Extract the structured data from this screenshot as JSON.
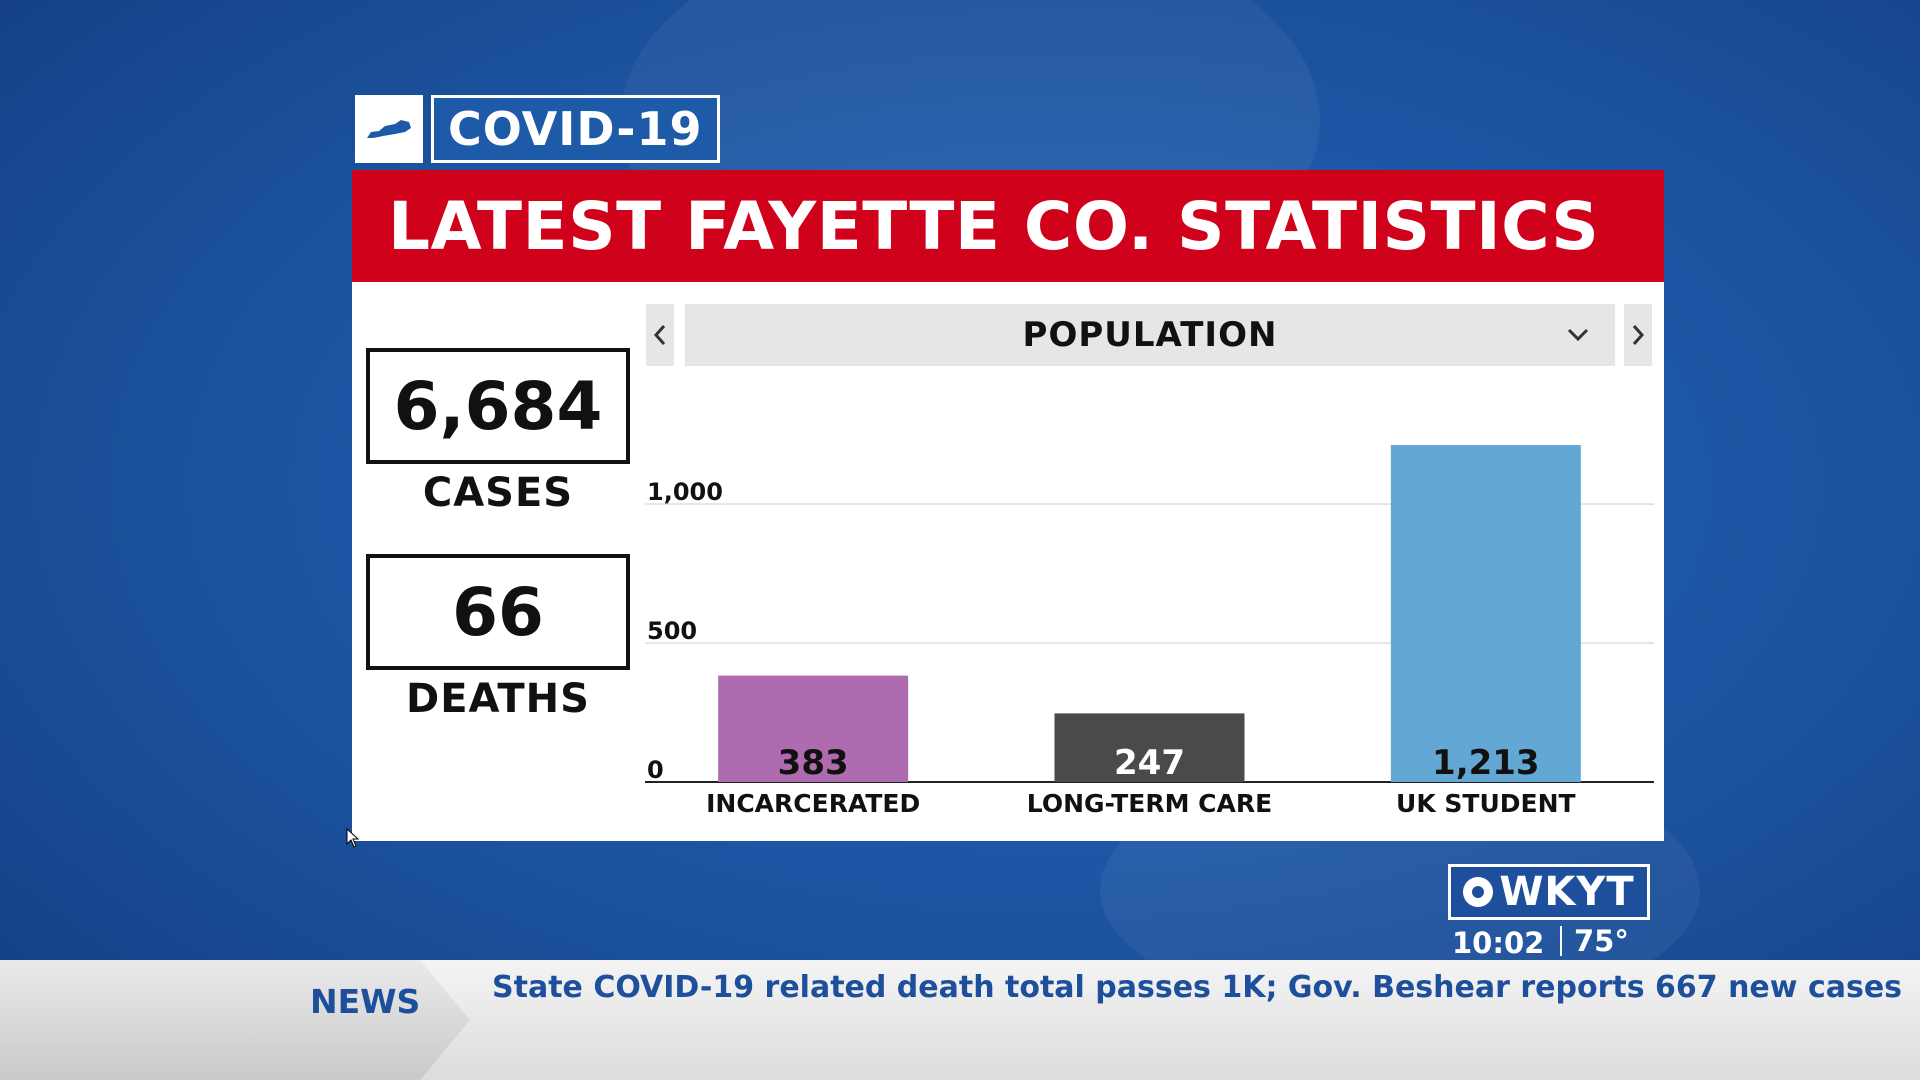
{
  "tag": {
    "state_icon": "kentucky-map-icon",
    "label": "COVID-19"
  },
  "title": "LATEST FAYETTE CO. STATISTICS",
  "stats": [
    {
      "value": "6,684",
      "label": "CASES"
    },
    {
      "value": "66",
      "label": "DEATHS"
    }
  ],
  "selector": {
    "label": "POPULATION",
    "prev_icon": "chevron-left-icon",
    "next_icon": "chevron-right-icon",
    "dropdown_icon": "chevron-down-icon"
  },
  "chart_data": {
    "type": "bar",
    "categories": [
      "INCARCERATED",
      "LONG-TERM CARE",
      "UK STUDENT"
    ],
    "values": [
      383,
      247,
      1213
    ],
    "value_labels": [
      "383",
      "247",
      "1,213"
    ],
    "colors": [
      "#ae6bb0",
      "#4a4a4a",
      "#63a8d5"
    ],
    "label_colors": [
      "#111111",
      "#ffffff",
      "#111111"
    ],
    "yticks": [
      0,
      500,
      1000
    ],
    "ytick_labels": [
      "0",
      "500",
      "1,000"
    ],
    "ylim": [
      0,
      1213
    ],
    "title": "",
    "xlabel": "",
    "ylabel": "",
    "grid": true
  },
  "branding": {
    "logo": "WKYT",
    "time": "10:02",
    "temperature": "75°"
  },
  "ticker": {
    "label": "NEWS",
    "headline": "State COVID-19 related death total passes 1K; Gov. Beshear reports 667 new cases"
  }
}
